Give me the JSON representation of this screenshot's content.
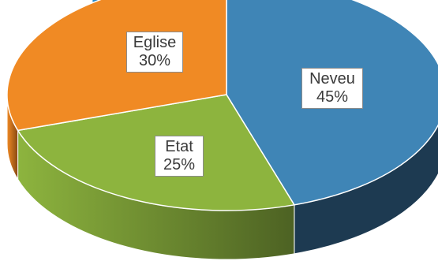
{
  "title_fragment": "ng p",
  "chart_data": {
    "type": "pie",
    "style": "3d",
    "start_angle_clockwise_from_top_deg": 0,
    "slices": [
      {
        "label": "Neveu",
        "value": 45,
        "value_label": "45%",
        "color": "#3f85b6",
        "side_color": "#1d3a51"
      },
      {
        "label": "Etat",
        "value": 25,
        "value_label": "25%",
        "color": "#8db43e",
        "side_color": "#4d6223"
      },
      {
        "label": "Eglise",
        "value": 30,
        "value_label": "30%",
        "color": "#f08a24",
        "side_color": "#874812"
      }
    ]
  }
}
